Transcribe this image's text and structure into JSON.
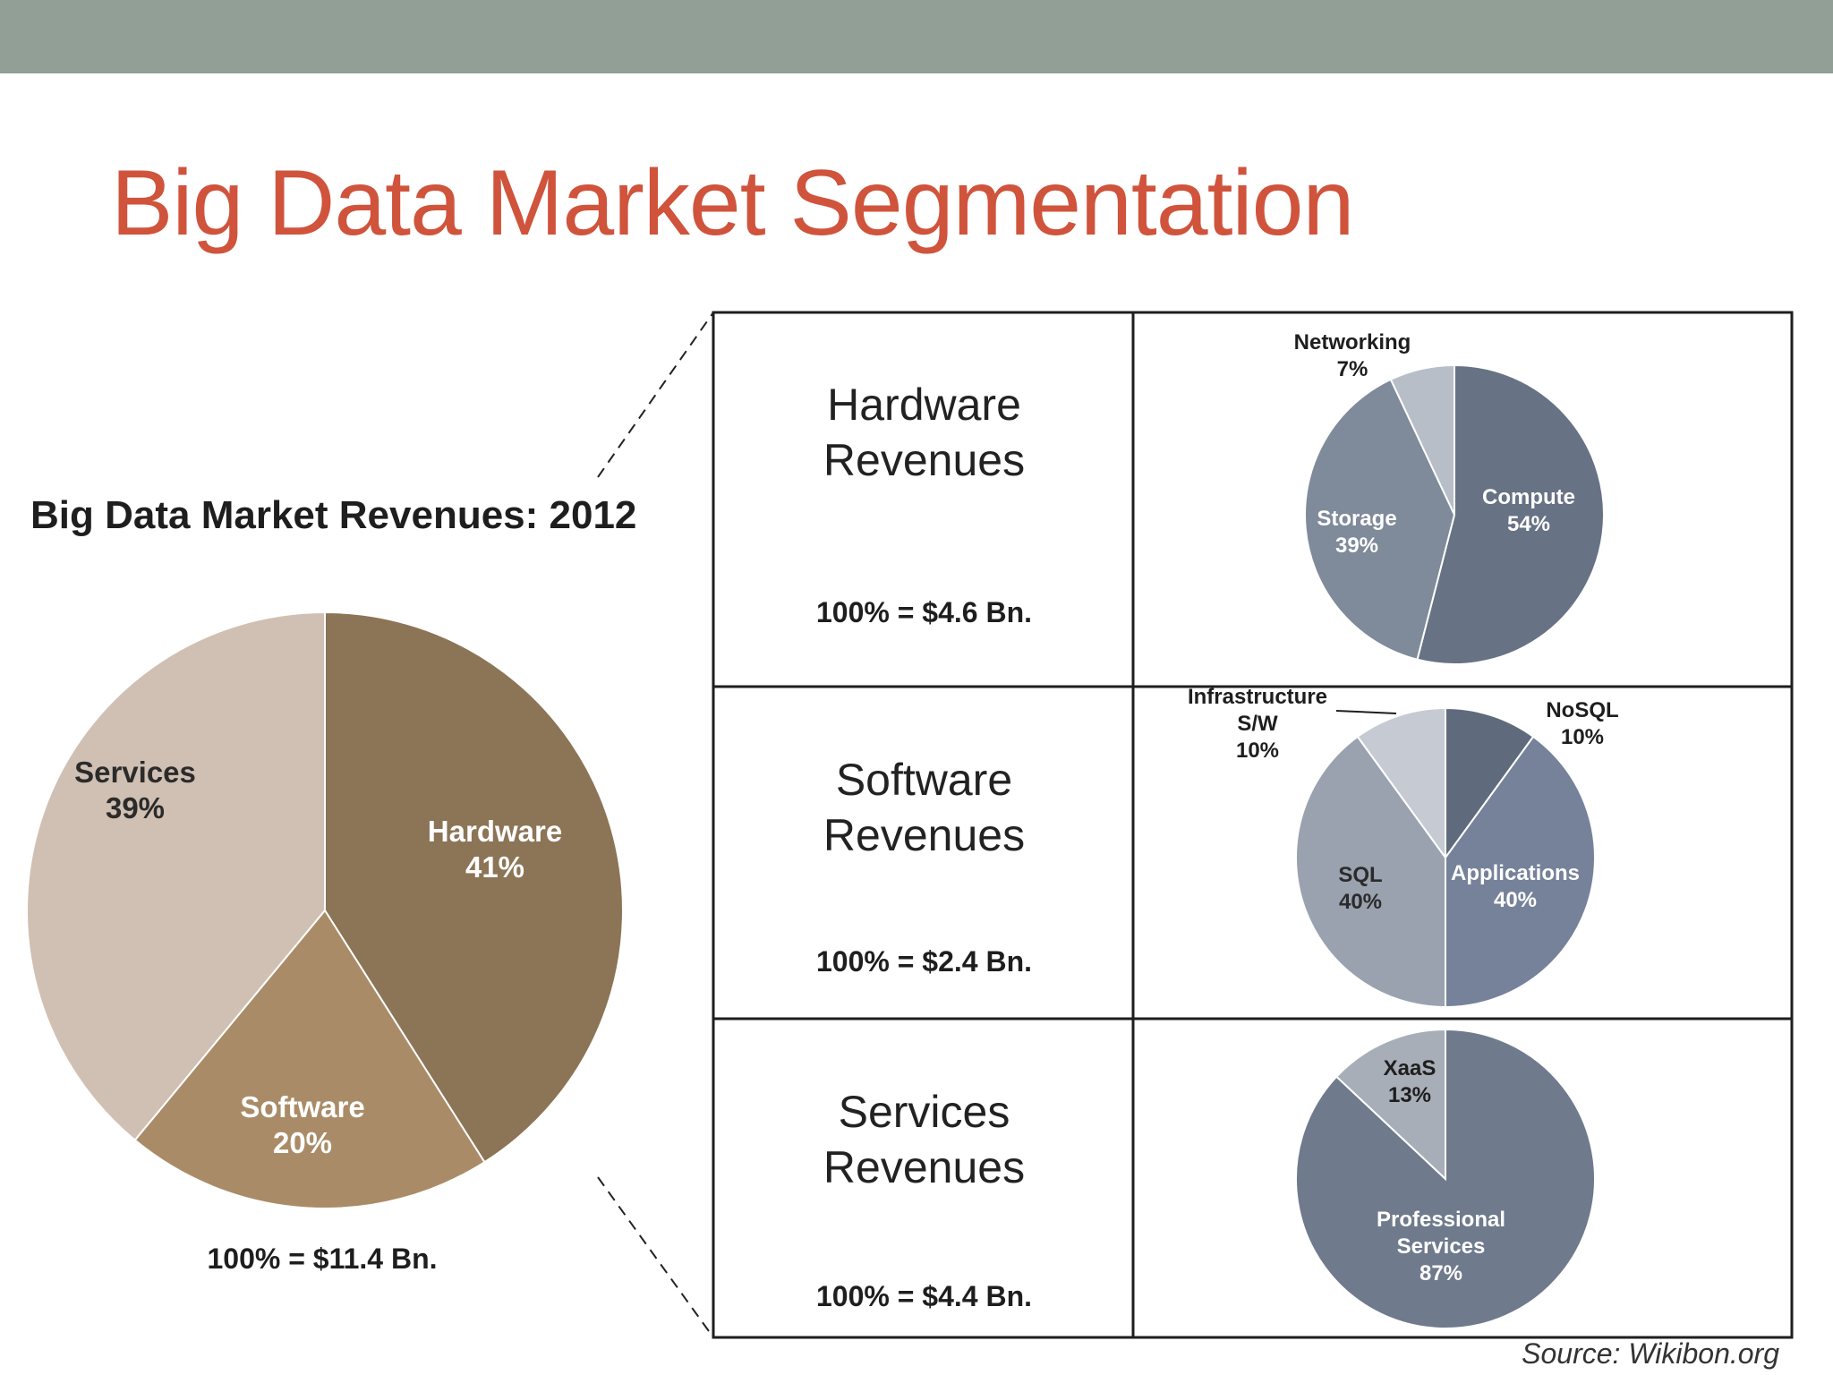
{
  "slide": {
    "title": "Big Data Market Segmentation",
    "source": "Source: Wikibon.org"
  },
  "colors": {
    "top_bar": "#919f97",
    "title": "#d0533c",
    "hardware": "#8c7456",
    "software": "#a98c67",
    "services": "#d0c0b3",
    "compute": "#677284",
    "storage": "#7f8a9a",
    "networking": "#b8bec8",
    "nosql": "#5f6b7c",
    "applications": "#76829a",
    "sql": "#9aa2b0",
    "infrastructure": "#c6cad2",
    "professional_services": "#6f7a8c",
    "xaas": "#a8aeb8"
  },
  "main": {
    "chart_title": "Big Data Market Revenues: 2012",
    "total": "100% = $11.4 Bn."
  },
  "rows": [
    {
      "title_line1": "Hardware",
      "title_line2": "Revenues",
      "total": "100% = $4.6 Bn."
    },
    {
      "title_line1": "Software",
      "title_line2": "Revenues",
      "total": "100% = $2.4 Bn."
    },
    {
      "title_line1": "Services",
      "title_line2": "Revenues",
      "total": "100% = $4.4 Bn."
    }
  ],
  "chart_data": [
    {
      "type": "pie",
      "title": "Big Data Market Revenues: 2012",
      "total": "100% = $11.4 Bn.",
      "series": [
        {
          "name": "Hardware",
          "value": 41,
          "label": "41%",
          "color": "#8c7456",
          "text_color": "#ffffff"
        },
        {
          "name": "Software",
          "value": 20,
          "label": "20%",
          "color": "#a98c67",
          "text_color": "#ffffff"
        },
        {
          "name": "Services",
          "value": 39,
          "label": "39%",
          "color": "#d0c0b3",
          "text_color": "#2b2b2b"
        }
      ]
    },
    {
      "type": "pie",
      "title": "Hardware Revenues",
      "total": "100% = $4.6 Bn.",
      "series": [
        {
          "name": "Compute",
          "value": 54,
          "label": "54%",
          "color": "#677284",
          "text_color": "#ffffff"
        },
        {
          "name": "Storage",
          "value": 39,
          "label": "39%",
          "color": "#7f8a9a",
          "text_color": "#ffffff"
        },
        {
          "name": "Networking",
          "value": 7,
          "label": "7%",
          "color": "#b8bec8",
          "text_color": "#1e1e1e"
        }
      ]
    },
    {
      "type": "pie",
      "title": "Software Revenues",
      "total": "100% = $2.4 Bn.",
      "series": [
        {
          "name": "NoSQL",
          "value": 10,
          "label": "10%",
          "color": "#5f6b7c",
          "text_color": "#1e1e1e"
        },
        {
          "name": "Applications",
          "value": 40,
          "label": "40%",
          "color": "#76829a",
          "text_color": "#ffffff"
        },
        {
          "name": "SQL",
          "value": 40,
          "label": "40%",
          "color": "#9aa2b0",
          "text_color": "#2b2b2b"
        },
        {
          "name": "Infrastructure S/W",
          "value": 10,
          "label": "10%",
          "color": "#c6cad2",
          "text_color": "#1e1e1e"
        }
      ]
    },
    {
      "type": "pie",
      "title": "Services Revenues",
      "total": "100% = $4.4 Bn.",
      "series": [
        {
          "name": "Professional Services",
          "value": 87,
          "label": "87%",
          "color": "#6f7a8c",
          "text_color": "#ffffff"
        },
        {
          "name": "XaaS",
          "value": 13,
          "label": "13%",
          "color": "#a8aeb8",
          "text_color": "#1e1e1e"
        }
      ]
    }
  ]
}
